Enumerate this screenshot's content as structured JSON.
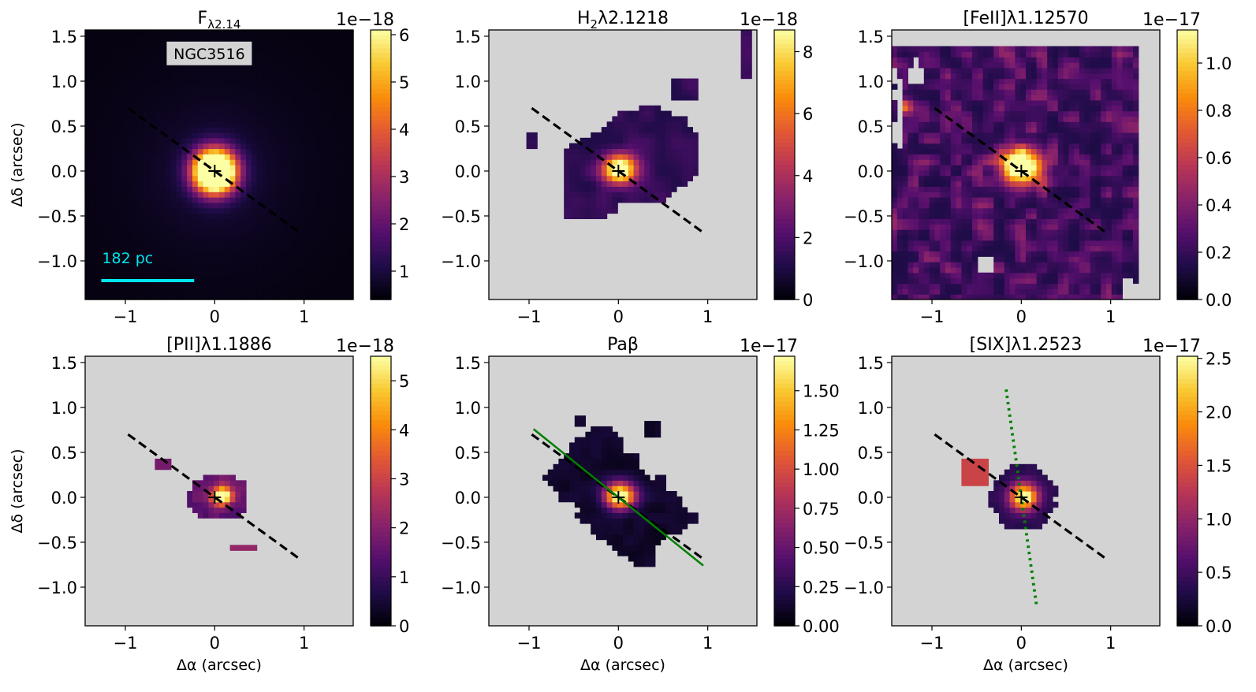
{
  "chart_data": [
    {
      "type": "heatmap",
      "panel": "continuum",
      "title_main": "F",
      "title_sub": "λ2.14",
      "exponent_label": "1e−18",
      "xlabel": "",
      "ylabel": "Δδ (arcsec)",
      "xlim": [
        -1.45,
        1.55
      ],
      "ylim": [
        -1.43,
        1.57
      ],
      "x_ticks": [
        -1,
        0,
        1
      ],
      "x_tick_labels": [
        "−1",
        "0",
        "1"
      ],
      "y_ticks": [
        -1.0,
        -0.5,
        0.0,
        0.5,
        1.0,
        1.5
      ],
      "y_tick_labels": [
        "−1.0",
        "−0.5",
        "0.0",
        "0.5",
        "1.0",
        "1.5"
      ],
      "colorbar": {
        "min": 0.4,
        "max": 6.1,
        "ticks": [
          1,
          2,
          3,
          4,
          5,
          6
        ],
        "tick_labels": [
          "1",
          "2",
          "3",
          "4",
          "5",
          "6"
        ]
      },
      "background": "#000004",
      "galaxy_label": "NGC3516",
      "scale_bar": {
        "label": "182 pc",
        "length_arcsec": 1.04,
        "color": "#00e5ee"
      },
      "major_axis": {
        "x0": -0.97,
        "y0": 0.7,
        "x1": 0.97,
        "y1": -0.7
      }
    },
    {
      "type": "heatmap",
      "panel": "H2",
      "title_main": "H",
      "title_sub2": "2",
      "title_rest": "λ2.1218",
      "exponent_label": "1e−18",
      "xlabel": "",
      "ylabel": "",
      "xlim": [
        -1.45,
        1.55
      ],
      "ylim": [
        -1.43,
        1.57
      ],
      "x_ticks": [
        -1,
        0,
        1
      ],
      "x_tick_labels": [
        "−1",
        "0",
        "1"
      ],
      "y_ticks": [
        -1.0,
        -0.5,
        0.0,
        0.5,
        1.0,
        1.5
      ],
      "y_tick_labels": [
        "−1.0",
        "−0.5",
        "0.0",
        "0.5",
        "1.0",
        "1.5"
      ],
      "colorbar": {
        "min": 0,
        "max": 8.7,
        "ticks": [
          0,
          2,
          4,
          6,
          8
        ],
        "tick_labels": [
          "0",
          "2",
          "4",
          "6",
          "8"
        ]
      },
      "background": "#d3d3d3",
      "major_axis": {
        "x0": -0.97,
        "y0": 0.7,
        "x1": 0.97,
        "y1": -0.7
      }
    },
    {
      "type": "heatmap",
      "panel": "FeII",
      "title_main": "[FeII]λ1.12570",
      "exponent_label": "1e−17",
      "xlabel": "",
      "ylabel": "",
      "xlim": [
        -1.45,
        1.55
      ],
      "ylim": [
        -1.43,
        1.57
      ],
      "x_ticks": [
        -1,
        0,
        1
      ],
      "x_tick_labels": [
        "−1",
        "0",
        "1"
      ],
      "y_ticks": [
        -1.0,
        -0.5,
        0.0,
        0.5,
        1.0,
        1.5
      ],
      "y_tick_labels": [
        "−1.0",
        "−0.5",
        "0.0",
        "0.5",
        "1.0",
        "1.5"
      ],
      "colorbar": {
        "min": 0,
        "max": 1.14,
        "ticks": [
          0.0,
          0.2,
          0.4,
          0.6,
          0.8,
          1.0
        ],
        "tick_labels": [
          "0.0",
          "0.2",
          "0.4",
          "0.6",
          "0.8",
          "1.0"
        ]
      },
      "background": "#d3d3d3",
      "major_axis": {
        "x0": -0.97,
        "y0": 0.7,
        "x1": 0.97,
        "y1": -0.7
      }
    },
    {
      "type": "heatmap",
      "panel": "PII",
      "title_main": "[PII]λ1.1886",
      "exponent_label": "1e−18",
      "xlabel": "Δα (arcsec)",
      "ylabel": "Δδ (arcsec)",
      "xlim": [
        -1.45,
        1.55
      ],
      "ylim": [
        -1.43,
        1.57
      ],
      "x_ticks": [
        -1,
        0,
        1
      ],
      "x_tick_labels": [
        "−1",
        "0",
        "1"
      ],
      "y_ticks": [
        -1.0,
        -0.5,
        0.0,
        0.5,
        1.0,
        1.5
      ],
      "y_tick_labels": [
        "−1.0",
        "−0.5",
        "0.0",
        "0.5",
        "1.0",
        "1.5"
      ],
      "colorbar": {
        "min": 0,
        "max": 5.5,
        "ticks": [
          0,
          1,
          2,
          3,
          4,
          5
        ],
        "tick_labels": [
          "0",
          "1",
          "2",
          "3",
          "4",
          "5"
        ]
      },
      "background": "#d3d3d3",
      "major_axis": {
        "x0": -0.97,
        "y0": 0.7,
        "x1": 0.97,
        "y1": -0.7
      }
    },
    {
      "type": "heatmap",
      "panel": "Pabeta",
      "title_main": "Paβ",
      "exponent_label": "1e−17",
      "xlabel": "Δα (arcsec)",
      "ylabel": "",
      "xlim": [
        -1.45,
        1.55
      ],
      "ylim": [
        -1.43,
        1.57
      ],
      "x_ticks": [
        -1,
        0,
        1
      ],
      "x_tick_labels": [
        "−1",
        "0",
        "1"
      ],
      "y_ticks": [
        -1.0,
        -0.5,
        0.0,
        0.5,
        1.0,
        1.5
      ],
      "y_tick_labels": [
        "−1.0",
        "−0.5",
        "0.0",
        "0.5",
        "1.0",
        "1.5"
      ],
      "colorbar": {
        "min": 0,
        "max": 1.72,
        "ticks": [
          0.0,
          0.25,
          0.5,
          0.75,
          1.0,
          1.25,
          1.5
        ],
        "tick_labels": [
          "0.00",
          "0.25",
          "0.50",
          "0.75",
          "1.00",
          "1.25",
          "1.50"
        ]
      },
      "background": "#d3d3d3",
      "major_axis": {
        "x0": -0.97,
        "y0": 0.7,
        "x1": 0.97,
        "y1": -0.7
      },
      "kinematic_axis": {
        "x0": -0.95,
        "y0": 0.76,
        "x1": 0.95,
        "y1": -0.76,
        "color": "#008000"
      }
    },
    {
      "type": "heatmap",
      "panel": "SIX",
      "title_main": "[SIX]λ1.2523",
      "exponent_label": "1e−17",
      "xlabel": "Δα (arcsec)",
      "ylabel": "",
      "xlim": [
        -1.45,
        1.55
      ],
      "ylim": [
        -1.43,
        1.57
      ],
      "x_ticks": [
        -1,
        0,
        1
      ],
      "x_tick_labels": [
        "−1",
        "0",
        "1"
      ],
      "y_ticks": [
        -1.0,
        -0.5,
        0.0,
        0.5,
        1.0,
        1.5
      ],
      "y_tick_labels": [
        "−1.0",
        "−0.5",
        "0.0",
        "0.5",
        "1.0",
        "1.5"
      ],
      "colorbar": {
        "min": 0,
        "max": 2.52,
        "ticks": [
          0.0,
          0.5,
          1.0,
          1.5,
          2.0,
          2.5
        ],
        "tick_labels": [
          "0.0",
          "0.5",
          "1.0",
          "1.5",
          "2.0",
          "2.5"
        ]
      },
      "background": "#d3d3d3",
      "major_axis": {
        "x0": -0.97,
        "y0": 0.7,
        "x1": 0.97,
        "y1": -0.7
      },
      "outflow_axis": {
        "x0": -0.17,
        "y0": 1.2,
        "x1": 0.17,
        "y1": -1.2,
        "color": "#008000"
      }
    }
  ],
  "colormap": "inferno",
  "nucleus_marker": "+"
}
